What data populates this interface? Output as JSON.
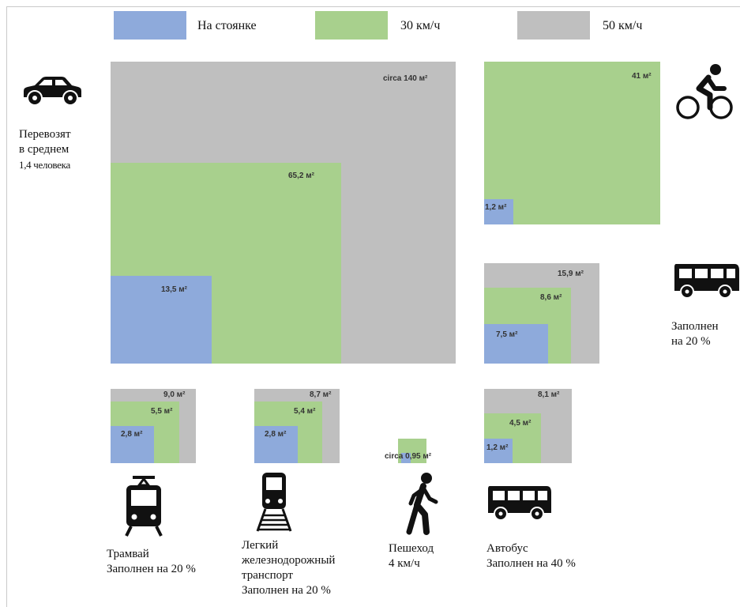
{
  "legend": {
    "parked": {
      "label": "На стоянке",
      "color": "#8eaadb"
    },
    "speed30": {
      "label": "30 км/ч",
      "color": "#a8d08d"
    },
    "speed50": {
      "label": "50 км/ч",
      "color": "#bfbfbf"
    }
  },
  "car": {
    "icon": "car-icon",
    "caption_lines": [
      "Перевозят",
      "в среднем",
      "1,4 человека"
    ],
    "areas": {
      "parked": "13,5 м²",
      "speed30": "65,2 м²",
      "speed50": "circa 140 м²"
    }
  },
  "bicycle": {
    "icon": "bicycle-icon",
    "areas": {
      "parked": "1,2 м²",
      "speed30": "41 м²"
    }
  },
  "bus_20": {
    "icon": "bus-icon",
    "caption_lines": [
      "Заполнен",
      "на 20 %"
    ],
    "areas": {
      "parked": "7,5 м²",
      "speed30": "8,6 м²",
      "speed50": "15,9 м²"
    }
  },
  "tram": {
    "icon": "tram-icon",
    "caption_lines": [
      "Трамвай",
      "Заполнен на 20 %"
    ],
    "areas": {
      "parked": "2,8 м²",
      "speed30": "5,5 м²",
      "speed50": "9,0 м²"
    }
  },
  "light_rail": {
    "icon": "train-icon",
    "caption_lines": [
      "Легкий",
      "железнодорожный",
      "транспорт",
      "Заполнен на 20 %"
    ],
    "areas": {
      "parked": "2,8 м²",
      "speed30": "5,4 м²",
      "speed50": "8,7 м²"
    }
  },
  "pedestrian": {
    "icon": "pedestrian-icon",
    "caption_lines": [
      "Пешеход",
      "4 км/ч"
    ],
    "areas": {
      "speed30": "circa 0,95 м²"
    }
  },
  "bus_40": {
    "icon": "bus-icon",
    "caption_lines": [
      "Автобус",
      "Заполнен на 40 %"
    ],
    "areas": {
      "parked": "1,2 м²",
      "speed30": "4,5 м²",
      "speed50": "8,1 м²"
    }
  }
}
